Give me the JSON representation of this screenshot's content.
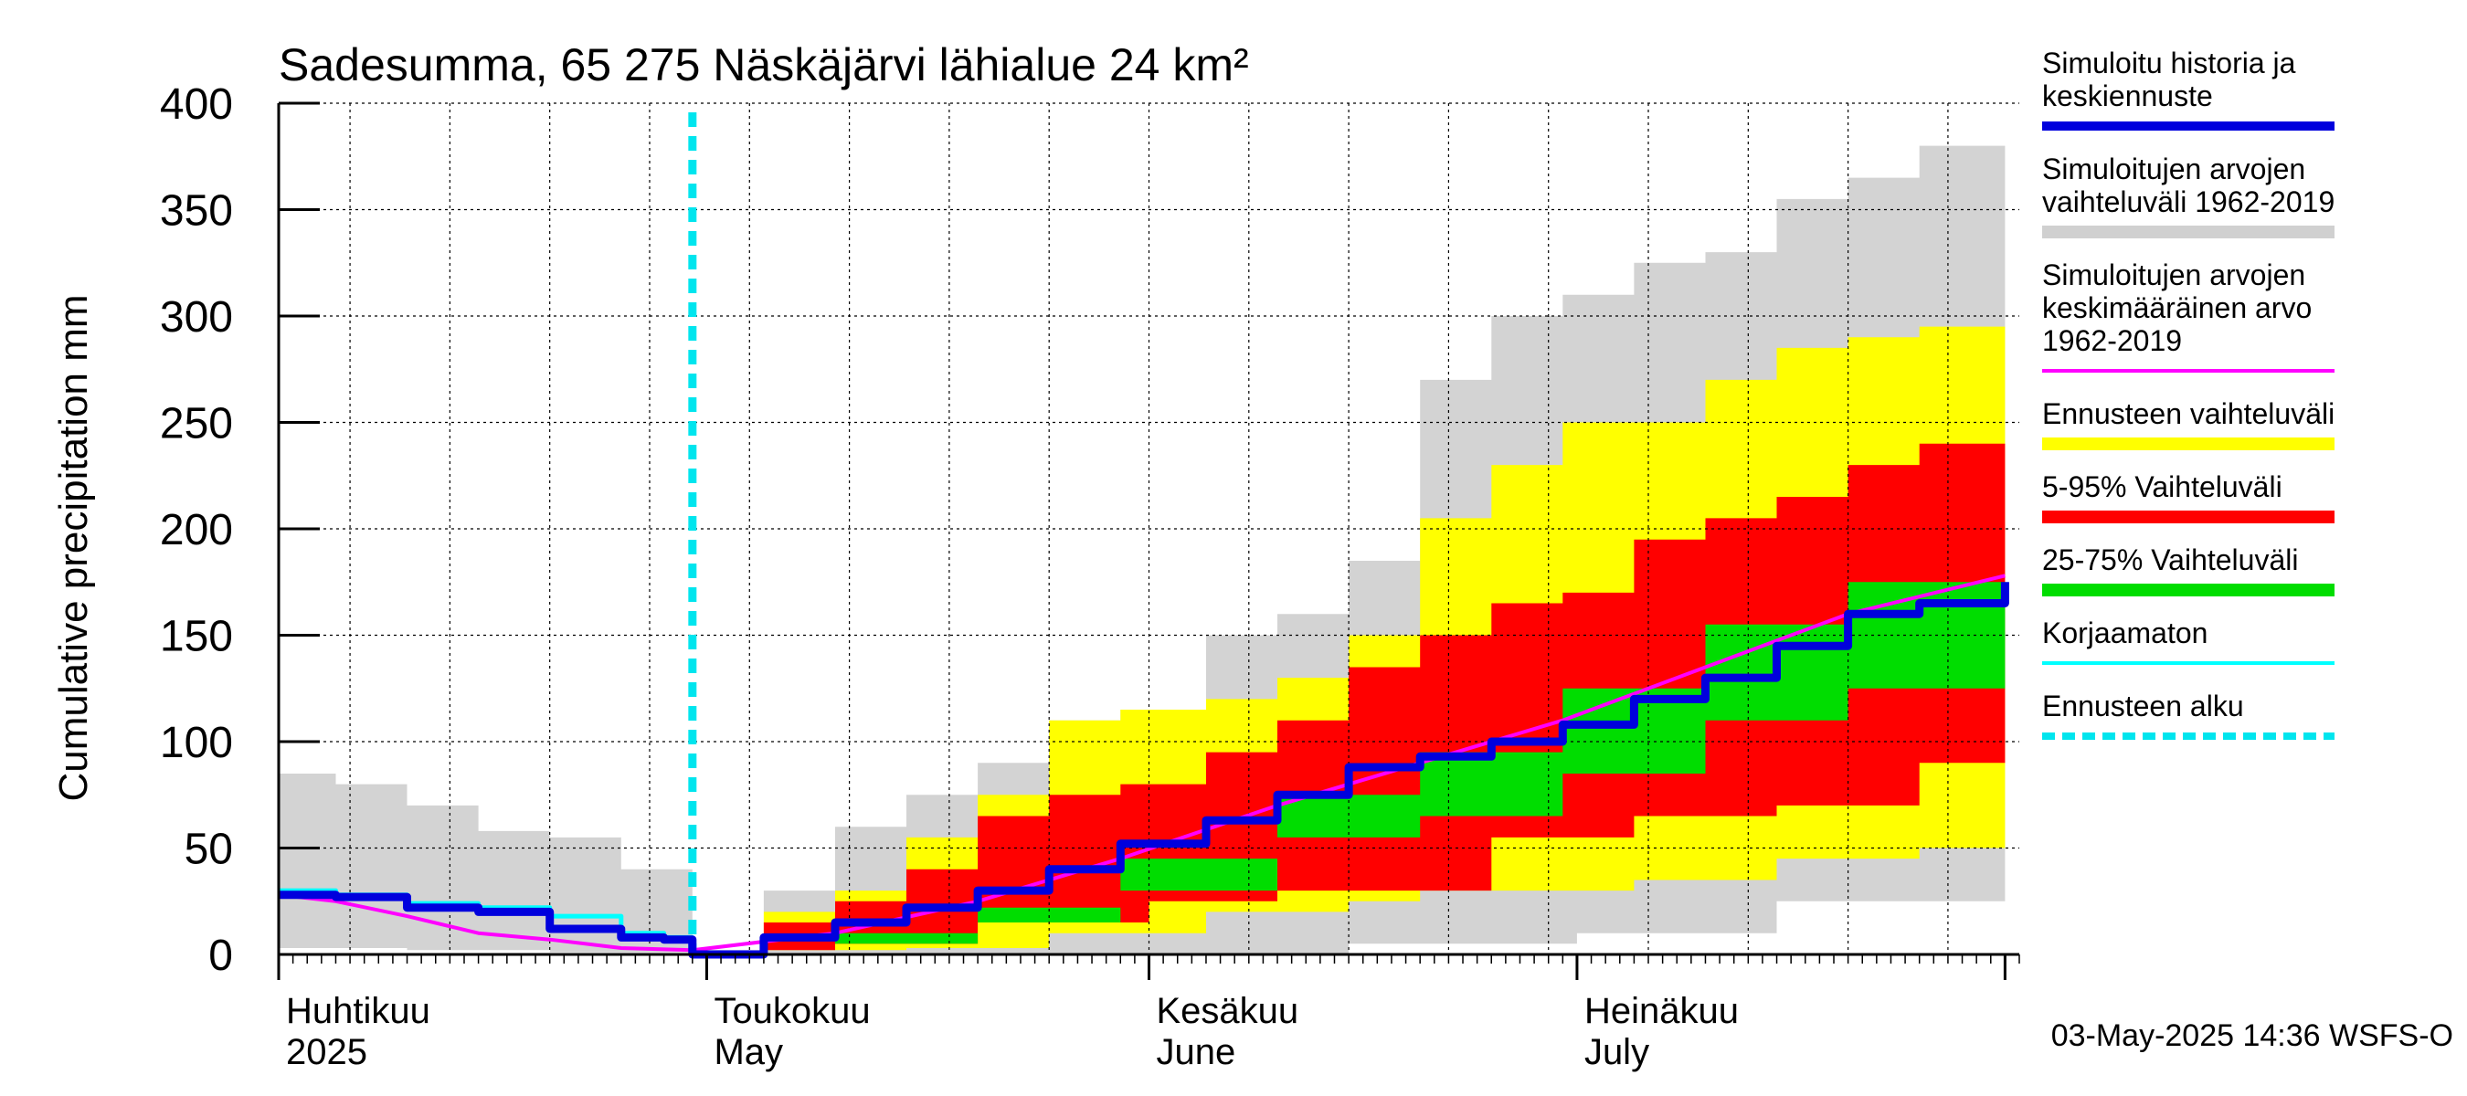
{
  "chart_data": {
    "type": "area",
    "title": "Sadesumma, 65 275 Näskäjärvi lähialue 24 km²",
    "ylabel": "Cumulative precipitation   mm",
    "xlabel": "",
    "ylim": [
      0,
      400
    ],
    "xlim": [
      "2025-04-01",
      "2025-07-31"
    ],
    "grid": true,
    "yticks": [
      0,
      50,
      100,
      150,
      200,
      250,
      300,
      350,
      400
    ],
    "month_labels": [
      {
        "date": "2025-04-01",
        "line1": "Huhtikuu",
        "line2": "2025"
      },
      {
        "date": "2025-05-01",
        "line1": "Toukokuu",
        "line2": "May"
      },
      {
        "date": "2025-06-01",
        "line1": "Kesäkuu",
        "line2": "June"
      },
      {
        "date": "2025-07-01",
        "line1": "Heinäkuu",
        "line2": "July"
      }
    ],
    "forecast_start": "2025-04-30",
    "timestamp": "03-May-2025 14:36 WSFS-O",
    "legend_placement": "right",
    "legend": [
      {
        "key": "hist",
        "label": [
          "Simuloitu historia ja",
          "keskiennuste"
        ],
        "color": "#0000dd"
      },
      {
        "key": "range",
        "label": [
          "Simuloitujen arvojen",
          "vaihteluväli 1962-2019"
        ],
        "color": "#d0d0d0"
      },
      {
        "key": "mean",
        "label": [
          "Simuloitujen arvojen",
          "keskimääräinen arvo",
          "   1962-2019"
        ],
        "color": "#ff00ff"
      },
      {
        "key": "fc_range",
        "label": [
          "Ennusteen vaihteluväli"
        ],
        "color": "#ffff00"
      },
      {
        "key": "p5_95",
        "label": [
          "5-95% Vaihteluväli"
        ],
        "color": "#ff0000"
      },
      {
        "key": "p25_75",
        "label": [
          "25-75% Vaihteluväli"
        ],
        "color": "#00dd00"
      },
      {
        "key": "raw",
        "label": [
          "Korjaamaton"
        ],
        "color": "#00ffff"
      },
      {
        "key": "fc_start",
        "label": [
          "Ennusteen alku"
        ],
        "color": "#00e5ee"
      }
    ],
    "series": {
      "range_upper": {
        "x": [
          "2025-04-01",
          "2025-04-05",
          "2025-04-10",
          "2025-04-15",
          "2025-04-20",
          "2025-04-25",
          "2025-04-30",
          "2025-05-05",
          "2025-05-10",
          "2025-05-15",
          "2025-05-20",
          "2025-05-25",
          "2025-05-30",
          "2025-06-05",
          "2025-06-10",
          "2025-06-15",
          "2025-06-20",
          "2025-06-25",
          "2025-06-30",
          "2025-07-05",
          "2025-07-10",
          "2025-07-15",
          "2025-07-20",
          "2025-07-25",
          "2025-07-31"
        ],
        "y": [
          85,
          80,
          70,
          58,
          55,
          40,
          2,
          30,
          60,
          75,
          90,
          110,
          115,
          150,
          160,
          185,
          270,
          300,
          310,
          325,
          330,
          355,
          365,
          380,
          395
        ]
      },
      "range_lower": {
        "x": [
          "2025-04-01",
          "2025-04-10",
          "2025-04-20",
          "2025-04-30",
          "2025-05-15",
          "2025-06-01",
          "2025-06-15",
          "2025-07-01",
          "2025-07-15",
          "2025-07-31"
        ],
        "y": [
          3,
          2,
          1,
          0,
          0,
          0,
          5,
          10,
          25,
          50
        ]
      },
      "fc_upper": {
        "x": [
          "2025-04-30",
          "2025-05-05",
          "2025-05-10",
          "2025-05-15",
          "2025-05-20",
          "2025-05-25",
          "2025-05-30",
          "2025-06-05",
          "2025-06-10",
          "2025-06-15",
          "2025-06-20",
          "2025-06-25",
          "2025-06-30",
          "2025-07-05",
          "2025-07-10",
          "2025-07-15",
          "2025-07-20",
          "2025-07-25",
          "2025-07-31"
        ],
        "y": [
          2,
          20,
          30,
          55,
          75,
          110,
          115,
          120,
          130,
          150,
          205,
          230,
          250,
          250,
          270,
          285,
          290,
          295,
          305
        ]
      },
      "fc_lower": {
        "x": [
          "2025-04-30",
          "2025-05-15",
          "2025-05-25",
          "2025-06-05",
          "2025-06-15",
          "2025-06-20",
          "2025-06-25",
          "2025-07-05",
          "2025-07-15",
          "2025-07-25",
          "2025-07-31"
        ],
        "y": [
          2,
          3,
          10,
          20,
          25,
          30,
          30,
          35,
          45,
          50,
          50
        ]
      },
      "p95": {
        "x": [
          "2025-04-30",
          "2025-05-05",
          "2025-05-10",
          "2025-05-15",
          "2025-05-20",
          "2025-05-25",
          "2025-05-30",
          "2025-06-05",
          "2025-06-10",
          "2025-06-15",
          "2025-06-20",
          "2025-06-25",
          "2025-06-30",
          "2025-07-05",
          "2025-07-10",
          "2025-07-15",
          "2025-07-20",
          "2025-07-25",
          "2025-07-31"
        ],
        "y": [
          2,
          15,
          25,
          40,
          65,
          75,
          80,
          95,
          110,
          135,
          150,
          165,
          170,
          195,
          205,
          215,
          230,
          240,
          252
        ]
      },
      "p5": {
        "x": [
          "2025-04-30",
          "2025-05-10",
          "2025-05-20",
          "2025-06-01",
          "2025-06-10",
          "2025-06-20",
          "2025-06-25",
          "2025-07-05",
          "2025-07-15",
          "2025-07-25",
          "2025-07-31"
        ],
        "y": [
          2,
          5,
          15,
          25,
          30,
          30,
          55,
          65,
          70,
          90,
          100
        ]
      },
      "p75": {
        "x": [
          "2025-04-30",
          "2025-05-10",
          "2025-05-20",
          "2025-05-30",
          "2025-06-10",
          "2025-06-20",
          "2025-06-30",
          "2025-07-10",
          "2025-07-20",
          "2025-07-31"
        ],
        "y": [
          2,
          10,
          22,
          45,
          75,
          95,
          125,
          155,
          175,
          228
        ]
      },
      "p25": {
        "x": [
          "2025-04-30",
          "2025-05-10",
          "2025-05-20",
          "2025-05-30",
          "2025-06-10",
          "2025-06-20",
          "2025-06-30",
          "2025-07-10",
          "2025-07-20",
          "2025-07-31"
        ],
        "y": [
          2,
          5,
          15,
          30,
          55,
          65,
          85,
          110,
          125,
          145
        ]
      },
      "hist": {
        "x": [
          "2025-04-01",
          "2025-04-05",
          "2025-04-10",
          "2025-04-15",
          "2025-04-20",
          "2025-04-25",
          "2025-04-28",
          "2025-04-30",
          "2025-05-05",
          "2025-05-10",
          "2025-05-15",
          "2025-05-20",
          "2025-05-25",
          "2025-05-30",
          "2025-06-05",
          "2025-06-10",
          "2025-06-15",
          "2025-06-20",
          "2025-06-25",
          "2025-06-30",
          "2025-07-05",
          "2025-07-10",
          "2025-07-15",
          "2025-07-20",
          "2025-07-25",
          "2025-07-31"
        ],
        "y": [
          28,
          27,
          22,
          20,
          12,
          8,
          7,
          0,
          8,
          15,
          22,
          30,
          40,
          52,
          63,
          75,
          88,
          93,
          100,
          108,
          120,
          130,
          145,
          160,
          165,
          175
        ]
      },
      "raw": {
        "x": [
          "2025-04-01",
          "2025-04-05",
          "2025-04-10",
          "2025-04-15",
          "2025-04-20",
          "2025-04-25",
          "2025-04-28",
          "2025-04-30"
        ],
        "y": [
          30,
          28,
          24,
          22,
          18,
          10,
          8,
          0
        ]
      },
      "mean": {
        "x": [
          "2025-04-01",
          "2025-04-05",
          "2025-04-10",
          "2025-04-15",
          "2025-04-20",
          "2025-04-25",
          "2025-04-30",
          "2025-05-10",
          "2025-05-20",
          "2025-05-30",
          "2025-06-10",
          "2025-06-20",
          "2025-06-30",
          "2025-07-10",
          "2025-07-20",
          "2025-07-31"
        ],
        "y": [
          28,
          25,
          18,
          10,
          7,
          3,
          2,
          10,
          25,
          45,
          70,
          90,
          110,
          135,
          160,
          178
        ]
      }
    }
  }
}
